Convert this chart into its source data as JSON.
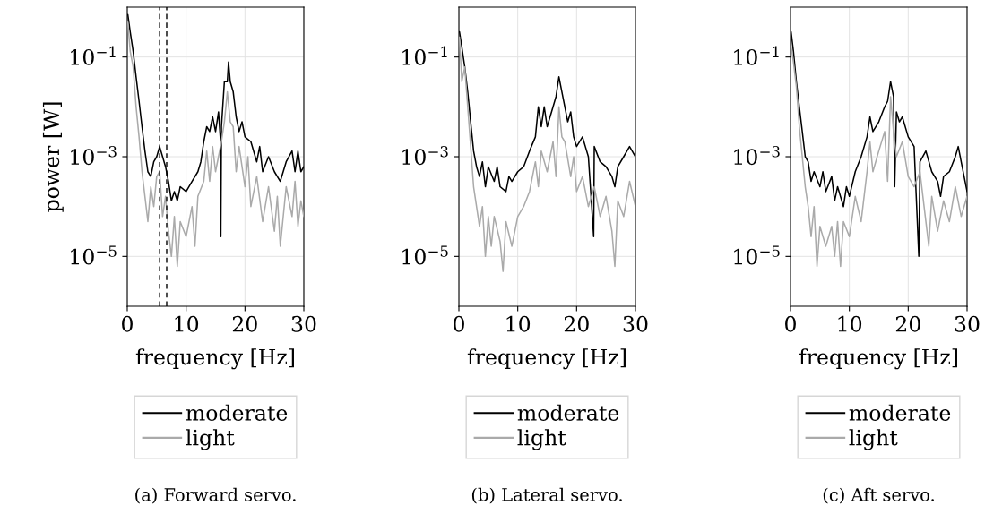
{
  "chart_data": [
    {
      "type": "line",
      "xlabel": "frequency [Hz]",
      "ylabel": "power [W]",
      "annotations": [
        "(a) Forward servo."
      ],
      "log": "y",
      "grid": true,
      "legend": "bottom",
      "xlim": [
        0,
        30
      ],
      "xticks": [
        0,
        10,
        20,
        30
      ],
      "ylim": [
        1e-06,
        1
      ],
      "yticks": [
        {
          "value": 0.1,
          "label": "10$^{−1}$"
        },
        {
          "value": 0.001,
          "label": "10$^{−3}$"
        },
        {
          "value": 1e-05,
          "label": "10$^{−5}$"
        }
      ],
      "line_style": "solid",
      "ref_lines": [
        {
          "axis": "x",
          "value": 5.5,
          "label": null,
          "color": "#000000",
          "line_style": "dashed"
        },
        {
          "axis": "x",
          "value": 6.7,
          "label": null,
          "color": "#000000",
          "line_style": "dashed"
        }
      ],
      "series": [
        {
          "name": "moderate",
          "color": "#000000",
          "x": [
            0.1,
            0.5,
            1,
            1.5,
            2,
            2.5,
            3,
            3.5,
            4,
            4.5,
            5,
            5.5,
            6,
            6.5,
            7,
            7.5,
            8,
            8.5,
            9,
            10,
            11,
            12,
            12.5,
            13,
            13.5,
            14,
            14.5,
            15,
            15.5,
            15.8,
            15.9,
            16,
            16.5,
            17,
            17.2,
            17.5,
            18,
            18.5,
            19,
            19.5,
            20,
            21,
            22,
            22.5,
            23,
            24,
            25,
            26,
            27,
            28,
            28.5,
            29,
            29.5,
            30
          ],
          "values": [
            0.71,
            0.32,
            0.13,
            0.04,
            0.013,
            0.004,
            0.0013,
            0.0005,
            0.0004,
            0.00079,
            0.001,
            0.0016,
            0.001,
            0.00063,
            0.00032,
            0.00013,
            0.0002,
            0.00013,
            0.00025,
            0.0002,
            0.00032,
            0.0005,
            0.00079,
            0.002,
            0.004,
            0.0032,
            0.0063,
            0.0032,
            0.0079,
            0.0025,
            2.5e-05,
            0.004,
            0.032,
            0.032,
            0.079,
            0.032,
            0.02,
            0.0063,
            0.0032,
            0.005,
            0.0025,
            0.002,
            0.00079,
            0.0016,
            0.0005,
            0.001,
            0.0005,
            0.00032,
            0.00079,
            0.0013,
            0.0005,
            0.0013,
            0.0005,
            0.00063
          ]
        },
        {
          "name": "light",
          "color": "#aaaaaa",
          "x": [
            0.1,
            0.5,
            1,
            1.5,
            2,
            2.5,
            3,
            3.5,
            4,
            4.5,
            5,
            5.5,
            6,
            6.5,
            7,
            7.5,
            8,
            8.5,
            9,
            10,
            11,
            11.5,
            12,
            13,
            13.5,
            14,
            14.5,
            15,
            16,
            16.5,
            17,
            17.5,
            18,
            18.5,
            19,
            20,
            20.5,
            21,
            22,
            23,
            24,
            25,
            25.5,
            26,
            27,
            28,
            28.5,
            29,
            29.5,
            30
          ],
          "values": [
            0.5,
            0.13,
            0.063,
            0.01,
            0.0025,
            0.0005,
            0.00016,
            5e-05,
            0.00025,
            0.0001,
            0.0004,
            0.0005,
            6.3e-05,
            0.00016,
            3.2e-05,
            1e-05,
            6.3e-05,
            6.3e-06,
            5e-05,
            2.5e-05,
            0.0001,
            1.6e-05,
            0.00016,
            0.00032,
            0.0013,
            0.00032,
            0.0016,
            0.0005,
            0.002,
            0.005,
            0.02,
            0.005,
            0.004,
            0.0005,
            0.0016,
            0.00025,
            0.001,
            0.0001,
            0.0004,
            5e-05,
            0.00025,
            3.2e-05,
            0.00016,
            1.6e-05,
            0.00025,
            6.3e-05,
            0.00032,
            4e-05,
            0.00013,
            6.3e-05
          ]
        }
      ]
    },
    {
      "type": "line",
      "xlabel": "frequency [Hz]",
      "annotations": [
        "(b) Lateral servo."
      ],
      "log": "y",
      "grid": true,
      "legend": "bottom",
      "xlim": [
        0,
        30
      ],
      "xticks": [
        0,
        10,
        20,
        30
      ],
      "ylim": [
        1e-06,
        1
      ],
      "yticks": [
        {
          "value": 0.1,
          "label": "10$^{−1}$"
        },
        {
          "value": 0.001,
          "label": "10$^{−3}$"
        },
        {
          "value": 1e-05,
          "label": "10$^{−5}$"
        }
      ],
      "line_style": "solid",
      "series": [
        {
          "name": "moderate",
          "color": "#000000",
          "x": [
            0.1,
            0.5,
            1,
            1.5,
            2,
            2.5,
            3,
            3.5,
            4,
            4.5,
            5,
            6,
            6.5,
            7,
            8,
            8.5,
            9,
            10,
            11,
            12,
            13,
            13.5,
            14,
            14.5,
            15,
            16,
            16.5,
            17,
            17.5,
            18,
            18.5,
            19,
            19.5,
            20,
            21,
            22,
            22.9,
            23,
            24,
            25,
            26,
            26.5,
            27,
            28,
            29,
            30
          ],
          "values": [
            0.32,
            0.16,
            0.063,
            0.02,
            0.005,
            0.0013,
            0.00063,
            0.0004,
            0.00079,
            0.00025,
            0.00063,
            0.00032,
            0.00063,
            0.00025,
            0.0002,
            0.0004,
            0.00032,
            0.0005,
            0.00063,
            0.0013,
            0.0025,
            0.01,
            0.004,
            0.01,
            0.004,
            0.01,
            0.016,
            0.04,
            0.02,
            0.01,
            0.005,
            0.0079,
            0.0025,
            0.0016,
            0.0025,
            0.001,
            2.5e-05,
            0.0016,
            0.00079,
            0.00063,
            0.0004,
            0.00025,
            0.00063,
            0.001,
            0.0016,
            0.001
          ]
        },
        {
          "name": "light",
          "color": "#aaaaaa",
          "x": [
            0.1,
            0.5,
            1,
            1.5,
            2,
            2.5,
            3,
            3.5,
            4,
            4.5,
            5,
            5.5,
            6,
            7,
            7.5,
            8,
            9,
            10,
            11,
            12,
            13,
            13.5,
            14,
            15,
            16,
            16.5,
            17,
            17.5,
            18,
            19,
            19.5,
            20,
            21,
            22,
            23,
            24,
            25,
            26,
            26.5,
            27,
            28,
            29,
            30
          ],
          "values": [
            0.25,
            0.032,
            0.063,
            0.01,
            0.0016,
            0.00025,
            0.0001,
            4e-05,
            0.0001,
            1e-05,
            6.3e-05,
            1.6e-05,
            6.3e-05,
            2e-05,
            5e-06,
            5e-05,
            1.6e-05,
            6.3e-05,
            0.0001,
            0.0002,
            0.00079,
            0.00025,
            0.0013,
            0.0005,
            0.002,
            0.0004,
            0.01,
            0.0025,
            0.002,
            0.0004,
            0.001,
            0.0002,
            0.0004,
            0.0001,
            0.00025,
            6.3e-05,
            0.00016,
            3.2e-05,
            6.3e-06,
            0.00013,
            6.3e-05,
            0.00032,
            0.0001
          ]
        }
      ]
    },
    {
      "type": "line",
      "xlabel": "frequency [Hz]",
      "annotations": [
        "(c) Aft servo."
      ],
      "log": "y",
      "grid": true,
      "legend": "bottom",
      "xlim": [
        0,
        30
      ],
      "xticks": [
        0,
        10,
        20,
        30
      ],
      "ylim": [
        1e-06,
        1
      ],
      "yticks": [
        {
          "value": 0.1,
          "label": "10$^{−1}$"
        },
        {
          "value": 0.001,
          "label": "10$^{−3}$"
        },
        {
          "value": 1e-05,
          "label": "10$^{−5}$"
        }
      ],
      "line_style": "solid",
      "series": [
        {
          "name": "moderate",
          "color": "#000000",
          "x": [
            0.1,
            0.5,
            1,
            1.5,
            2,
            2.5,
            3,
            3.5,
            4,
            5,
            5.5,
            6,
            7,
            7.5,
            8,
            9,
            9.5,
            10,
            11,
            12,
            13,
            13.5,
            14,
            15,
            16,
            16.5,
            17,
            17.5,
            17.7,
            18,
            18.5,
            19,
            20,
            21,
            21.8,
            22,
            23,
            24,
            25,
            25.5,
            26,
            27,
            28,
            28.5,
            29,
            30
          ],
          "values": [
            0.32,
            0.13,
            0.032,
            0.01,
            0.0032,
            0.001,
            0.00079,
            0.00032,
            0.0005,
            0.00025,
            0.0005,
            0.0002,
            0.0004,
            0.00013,
            0.00025,
            0.0001,
            0.00025,
            0.00016,
            0.0005,
            0.001,
            0.0025,
            0.0063,
            0.0032,
            0.005,
            0.01,
            0.013,
            0.032,
            0.016,
            0.00025,
            0.0079,
            0.005,
            0.0063,
            0.0025,
            0.0016,
            1e-05,
            0.00079,
            0.0013,
            0.0005,
            0.00032,
            0.00016,
            0.0004,
            0.0005,
            0.001,
            0.0016,
            0.00079,
            0.0002
          ]
        },
        {
          "name": "light",
          "color": "#aaaaaa",
          "x": [
            0.1,
            0.5,
            1,
            1.5,
            2,
            2.5,
            3,
            3.5,
            4,
            4.5,
            5,
            6,
            7,
            7.5,
            8,
            8.5,
            9,
            10,
            11,
            12,
            13,
            13.5,
            14,
            15,
            16,
            16.5,
            17,
            17.5,
            18,
            19,
            20,
            21,
            22,
            23,
            23.5,
            24,
            25,
            26,
            27,
            28,
            29,
            30
          ],
          "values": [
            0.16,
            0.079,
            0.025,
            0.004,
            0.001,
            0.00025,
            0.0001,
            2.5e-05,
            0.0001,
            6.3e-06,
            4e-05,
            1.6e-05,
            4e-05,
            1e-05,
            5e-05,
            6.3e-06,
            5e-05,
            2.5e-05,
            0.00016,
            5e-05,
            0.0005,
            0.002,
            0.0005,
            0.0013,
            0.0032,
            0.00032,
            0.016,
            0.0032,
            0.001,
            0.002,
            0.0004,
            0.00025,
            0.0005,
            5e-05,
            1.6e-05,
            0.00016,
            3.2e-05,
            0.00013,
            5e-05,
            0.00025,
            6.3e-05,
            0.00016
          ]
        }
      ]
    }
  ]
}
